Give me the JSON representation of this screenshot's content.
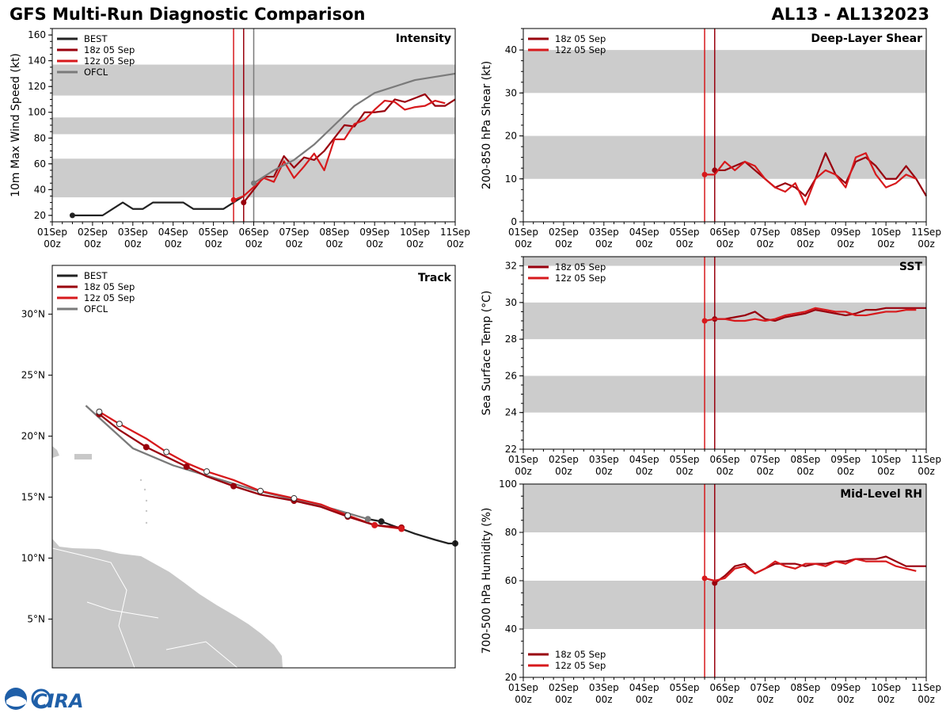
{
  "header": {
    "title": "GFS Multi-Run Diagnostic Comparison",
    "storm_id": "AL13 - AL132023"
  },
  "colors": {
    "BEST": "#222222",
    "18z 05 Sep": "#99000d",
    "12z 05 Sep": "#d7191c",
    "OFCL": "#7a7a7a",
    "band": "#cccccc",
    "land": "#c8c8c8"
  },
  "logo": {
    "text": "CIRA"
  },
  "chart_data": [
    {
      "id": "intensity",
      "type": "line",
      "title": "Intensity",
      "xlabel": "",
      "ylabel": "10m Max Wind Speed (kt)",
      "xlim": [
        0,
        10
      ],
      "ylim": [
        15,
        165
      ],
      "xticks": [
        [
          "01Sep",
          "00z"
        ],
        [
          "02Sep",
          "00z"
        ],
        [
          "03Sep",
          "00z"
        ],
        [
          "04Sep",
          "00z"
        ],
        [
          "05Sep",
          "00z"
        ],
        [
          "06Sep",
          "00z"
        ],
        [
          "07Sep",
          "00z"
        ],
        [
          "08Sep",
          "00z"
        ],
        [
          "09Sep",
          "00z"
        ],
        [
          "10Sep",
          "00z"
        ],
        [
          "11Sep",
          "00z"
        ]
      ],
      "yticks": [
        20,
        40,
        60,
        80,
        100,
        120,
        140,
        160
      ],
      "bands": [
        [
          34,
          64
        ],
        [
          83,
          96
        ],
        [
          113,
          137
        ]
      ],
      "vlines": [
        {
          "x": 4.5,
          "series": "12z 05 Sep"
        },
        {
          "x": 4.75,
          "series": "18z 05 Sep"
        },
        {
          "x": 5.0,
          "series": "OFCL"
        }
      ],
      "legend": [
        "BEST",
        "18z 05 Sep",
        "12z 05 Sep",
        "OFCL"
      ],
      "series": [
        {
          "name": "BEST",
          "x": [
            0.5,
            0.75,
            1.0,
            1.25,
            1.5,
            1.75,
            2.0,
            2.25,
            2.5,
            2.75,
            3.0,
            3.25,
            3.5,
            3.75,
            4.0,
            4.25,
            4.5,
            4.75
          ],
          "y": [
            20,
            20,
            20,
            20,
            25,
            30,
            25,
            25,
            30,
            30,
            30,
            30,
            25,
            25,
            25,
            25,
            30,
            35
          ]
        },
        {
          "name": "18z 05 Sep",
          "x": [
            4.75,
            5.0,
            5.25,
            5.5,
            5.75,
            6.0,
            6.25,
            6.5,
            6.75,
            7.0,
            7.25,
            7.5,
            7.75,
            8.0,
            8.25,
            8.5,
            8.75,
            9.0,
            9.25,
            9.5,
            9.75,
            10.0
          ],
          "y": [
            30,
            40,
            50,
            50,
            66,
            57,
            65,
            63,
            70,
            80,
            90,
            89,
            100,
            100,
            101,
            110,
            108,
            111,
            114,
            105,
            105,
            110
          ]
        },
        {
          "name": "12z 05 Sep",
          "x": [
            4.5,
            4.75,
            5.0,
            5.25,
            5.5,
            5.75,
            6.0,
            6.25,
            6.5,
            6.75,
            7.0,
            7.25,
            7.5,
            7.75,
            8.0,
            8.25,
            8.5,
            8.75,
            9.0,
            9.25,
            9.5,
            9.75
          ],
          "y": [
            32,
            35,
            42,
            49,
            46,
            62,
            49,
            58,
            68,
            55,
            79,
            79,
            91,
            94,
            102,
            109,
            108,
            102,
            104,
            105,
            109,
            107
          ]
        },
        {
          "name": "OFCL",
          "x": [
            5.0,
            5.5,
            6.0,
            6.5,
            7.0,
            7.5,
            8.0,
            9.0,
            10.0
          ],
          "y": [
            45,
            55,
            63,
            75,
            90,
            105,
            115,
            125,
            130
          ]
        }
      ]
    },
    {
      "id": "shear",
      "type": "line",
      "title": "Deep-Layer Shear",
      "xlabel": "",
      "ylabel": "200-850 hPa Shear (kt)",
      "xlim": [
        0,
        10
      ],
      "ylim": [
        0,
        45
      ],
      "xticks": [
        [
          "01Sep",
          "00z"
        ],
        [
          "02Sep",
          "00z"
        ],
        [
          "03Sep",
          "00z"
        ],
        [
          "04Sep",
          "00z"
        ],
        [
          "05Sep",
          "00z"
        ],
        [
          "06Sep",
          "00z"
        ],
        [
          "07Sep",
          "00z"
        ],
        [
          "08Sep",
          "00z"
        ],
        [
          "09Sep",
          "00z"
        ],
        [
          "10Sep",
          "00z"
        ],
        [
          "11Sep",
          "00z"
        ]
      ],
      "yticks": [
        0,
        10,
        20,
        30,
        40
      ],
      "bands": [
        [
          10,
          20
        ],
        [
          30,
          40
        ]
      ],
      "vlines": [
        {
          "x": 4.5,
          "series": "12z 05 Sep"
        },
        {
          "x": 4.75,
          "series": "18z 05 Sep"
        }
      ],
      "legend": [
        "18z 05 Sep",
        "12z 05 Sep"
      ],
      "series": [
        {
          "name": "18z 05 Sep",
          "x": [
            4.75,
            5.0,
            5.25,
            5.5,
            5.75,
            6.0,
            6.25,
            6.5,
            6.75,
            7.0,
            7.25,
            7.5,
            7.75,
            8.0,
            8.25,
            8.5,
            8.75,
            9.0,
            9.25,
            9.5,
            9.75,
            10.0
          ],
          "y": [
            12,
            12,
            13,
            14,
            12,
            10,
            8,
            9,
            8,
            6,
            10,
            16,
            11,
            9,
            14,
            15,
            13,
            10,
            10,
            13,
            10,
            6
          ]
        },
        {
          "name": "12z 05 Sep",
          "x": [
            4.5,
            4.75,
            5.0,
            5.25,
            5.5,
            5.75,
            6.0,
            6.25,
            6.5,
            6.75,
            7.0,
            7.25,
            7.5,
            7.75,
            8.0,
            8.25,
            8.5,
            8.75,
            9.0,
            9.25,
            9.5,
            9.75
          ],
          "y": [
            11,
            11,
            14,
            12,
            14,
            13,
            10,
            8,
            7,
            9,
            4,
            10,
            12,
            11,
            8,
            15,
            16,
            11,
            8,
            9,
            11,
            10
          ]
        }
      ]
    },
    {
      "id": "sst",
      "type": "line",
      "title": "SST",
      "xlabel": "",
      "ylabel": "Sea Surface Temp (°C)",
      "xlim": [
        0,
        10
      ],
      "ylim": [
        22,
        32.5
      ],
      "xticks": [
        [
          "01Sep",
          "00z"
        ],
        [
          "02Sep",
          "00z"
        ],
        [
          "03Sep",
          "00z"
        ],
        [
          "04Sep",
          "00z"
        ],
        [
          "05Sep",
          "00z"
        ],
        [
          "06Sep",
          "00z"
        ],
        [
          "07Sep",
          "00z"
        ],
        [
          "08Sep",
          "00z"
        ],
        [
          "09Sep",
          "00z"
        ],
        [
          "10Sep",
          "00z"
        ],
        [
          "11Sep",
          "00z"
        ]
      ],
      "yticks": [
        22,
        24,
        26,
        28,
        30,
        32
      ],
      "bands": [
        [
          24,
          26
        ],
        [
          28,
          30
        ],
        [
          32,
          32.5
        ]
      ],
      "vlines": [
        {
          "x": 4.5,
          "series": "12z 05 Sep"
        },
        {
          "x": 4.75,
          "series": "18z 05 Sep"
        }
      ],
      "legend": [
        "18z 05 Sep",
        "12z 05 Sep"
      ],
      "series": [
        {
          "name": "18z 05 Sep",
          "x": [
            4.75,
            5.0,
            5.25,
            5.5,
            5.75,
            6.0,
            6.25,
            6.5,
            6.75,
            7.0,
            7.25,
            7.5,
            7.75,
            8.0,
            8.25,
            8.5,
            8.75,
            9.0,
            9.25,
            9.5,
            9.75,
            10.0
          ],
          "y": [
            29.1,
            29.1,
            29.2,
            29.3,
            29.5,
            29.1,
            29.0,
            29.2,
            29.3,
            29.4,
            29.6,
            29.5,
            29.4,
            29.3,
            29.4,
            29.6,
            29.6,
            29.7,
            29.7,
            29.7,
            29.7,
            29.7
          ]
        },
        {
          "name": "12z 05 Sep",
          "x": [
            4.5,
            4.75,
            5.0,
            5.25,
            5.5,
            5.75,
            6.0,
            6.25,
            6.5,
            6.75,
            7.0,
            7.25,
            7.5,
            7.75,
            8.0,
            8.25,
            8.5,
            8.75,
            9.0,
            9.25,
            9.5,
            9.75
          ],
          "y": [
            29.0,
            29.1,
            29.1,
            29.0,
            29.0,
            29.1,
            29.0,
            29.1,
            29.3,
            29.4,
            29.5,
            29.7,
            29.6,
            29.5,
            29.5,
            29.3,
            29.3,
            29.4,
            29.5,
            29.5,
            29.6,
            29.6
          ]
        }
      ]
    },
    {
      "id": "rh",
      "type": "line",
      "title": "Mid-Level RH",
      "xlabel": "",
      "ylabel": "700-500 hPa Humidity (%)",
      "xlim": [
        0,
        10
      ],
      "ylim": [
        20,
        100
      ],
      "xticks": [
        [
          "01Sep",
          "00z"
        ],
        [
          "02Sep",
          "00z"
        ],
        [
          "03Sep",
          "00z"
        ],
        [
          "04Sep",
          "00z"
        ],
        [
          "05Sep",
          "00z"
        ],
        [
          "06Sep",
          "00z"
        ],
        [
          "07Sep",
          "00z"
        ],
        [
          "08Sep",
          "00z"
        ],
        [
          "09Sep",
          "00z"
        ],
        [
          "10Sep",
          "00z"
        ],
        [
          "11Sep",
          "00z"
        ]
      ],
      "yticks": [
        20,
        40,
        60,
        80,
        100
      ],
      "bands": [
        [
          40,
          60
        ],
        [
          80,
          100
        ]
      ],
      "vlines": [
        {
          "x": 4.5,
          "series": "12z 05 Sep"
        },
        {
          "x": 4.75,
          "series": "18z 05 Sep"
        }
      ],
      "legend": [
        "18z 05 Sep",
        "12z 05 Sep"
      ],
      "legend_position": "bottom-left",
      "series": [
        {
          "name": "18z 05 Sep",
          "x": [
            4.75,
            5.0,
            5.25,
            5.5,
            5.75,
            6.0,
            6.25,
            6.5,
            6.75,
            7.0,
            7.25,
            7.5,
            7.75,
            8.0,
            8.25,
            8.5,
            8.75,
            9.0,
            9.25,
            9.5,
            9.75,
            10.0
          ],
          "y": [
            59,
            62,
            66,
            67,
            63,
            65,
            67,
            67,
            67,
            66,
            67,
            67,
            68,
            68,
            69,
            69,
            69,
            70,
            68,
            66,
            66,
            66
          ]
        },
        {
          "name": "12z 05 Sep",
          "x": [
            4.5,
            4.75,
            5.0,
            5.25,
            5.5,
            5.75,
            6.0,
            6.25,
            6.5,
            6.75,
            7.0,
            7.25,
            7.5,
            7.75,
            8.0,
            8.25,
            8.5,
            8.75,
            9.0,
            9.25,
            9.5,
            9.75
          ],
          "y": [
            61,
            60,
            61,
            65,
            66,
            63,
            65,
            68,
            66,
            65,
            67,
            67,
            66,
            68,
            67,
            69,
            68,
            68,
            68,
            66,
            65,
            64
          ]
        }
      ]
    },
    {
      "id": "track",
      "type": "scatter",
      "title": "Track",
      "xlabel": "",
      "ylabel": "",
      "xlim": [
        -65,
        -35
      ],
      "ylim": [
        1,
        34
      ],
      "yticks": [
        5,
        10,
        15,
        20,
        25,
        30
      ],
      "ytick_labels": [
        "5°N",
        "10°N",
        "15°N",
        "20°N",
        "25°N",
        "30°N"
      ],
      "legend": [
        "BEST",
        "18z 05 Sep",
        "12z 05 Sep",
        "OFCL"
      ],
      "series": [
        {
          "name": "BEST",
          "x": [
            -35.0,
            -35.5,
            -36.5,
            -38.0,
            -39.5,
            -40.5,
            -41.5
          ],
          "y": [
            11.2,
            11.2,
            11.5,
            12.0,
            12.6,
            13.0,
            13.2
          ]
        },
        {
          "name": "18z 05 Sep",
          "x": [
            -39.0,
            -41.0,
            -43.0,
            -45.0,
            -47.0,
            -49.5,
            -51.5,
            -53.5,
            -55.0,
            -56.5,
            -58.0,
            -60.0,
            -61.5
          ],
          "y": [
            12.5,
            12.7,
            13.4,
            14.2,
            14.7,
            15.2,
            15.9,
            16.7,
            17.5,
            18.3,
            19.1,
            20.5,
            21.8
          ]
        },
        {
          "name": "12z 05 Sep",
          "x": [
            -39.0,
            -41.0,
            -43.0,
            -45.0,
            -47.0,
            -49.5,
            -51.5,
            -53.5,
            -55.0,
            -56.5,
            -58.0,
            -60.0,
            -61.5
          ],
          "y": [
            12.4,
            12.7,
            13.5,
            14.4,
            14.9,
            15.5,
            16.4,
            17.1,
            17.8,
            18.7,
            19.8,
            21.0,
            22.0
          ]
        },
        {
          "name": "OFCL",
          "x": [
            -41.5,
            -44.0,
            -47.0,
            -50.0,
            -53.0,
            -56.0,
            -59.0,
            -62.5
          ],
          "y": [
            13.2,
            14.0,
            14.8,
            15.6,
            16.6,
            17.6,
            19.0,
            22.5
          ]
        }
      ],
      "markers": [
        {
          "series": "BEST",
          "x": [
            -35.0,
            -40.5
          ]
        },
        {
          "series": "18z 05 Sep",
          "x": [
            -39.0,
            -43.0,
            -47.0,
            -51.5,
            -55.0,
            -58.0,
            -61.5
          ],
          "filled": true
        },
        {
          "series": "12z 05 Sep",
          "x": [
            -39.0,
            -41.0
          ],
          "filled": true
        },
        {
          "series": "12z 05 Sep",
          "x": [
            -43.0,
            -47.0,
            -49.5,
            -53.5,
            -56.5,
            -60.0,
            -61.5
          ],
          "filled": false
        },
        {
          "series": "OFCL",
          "x": [
            -41.5
          ],
          "filled": true
        }
      ]
    }
  ]
}
